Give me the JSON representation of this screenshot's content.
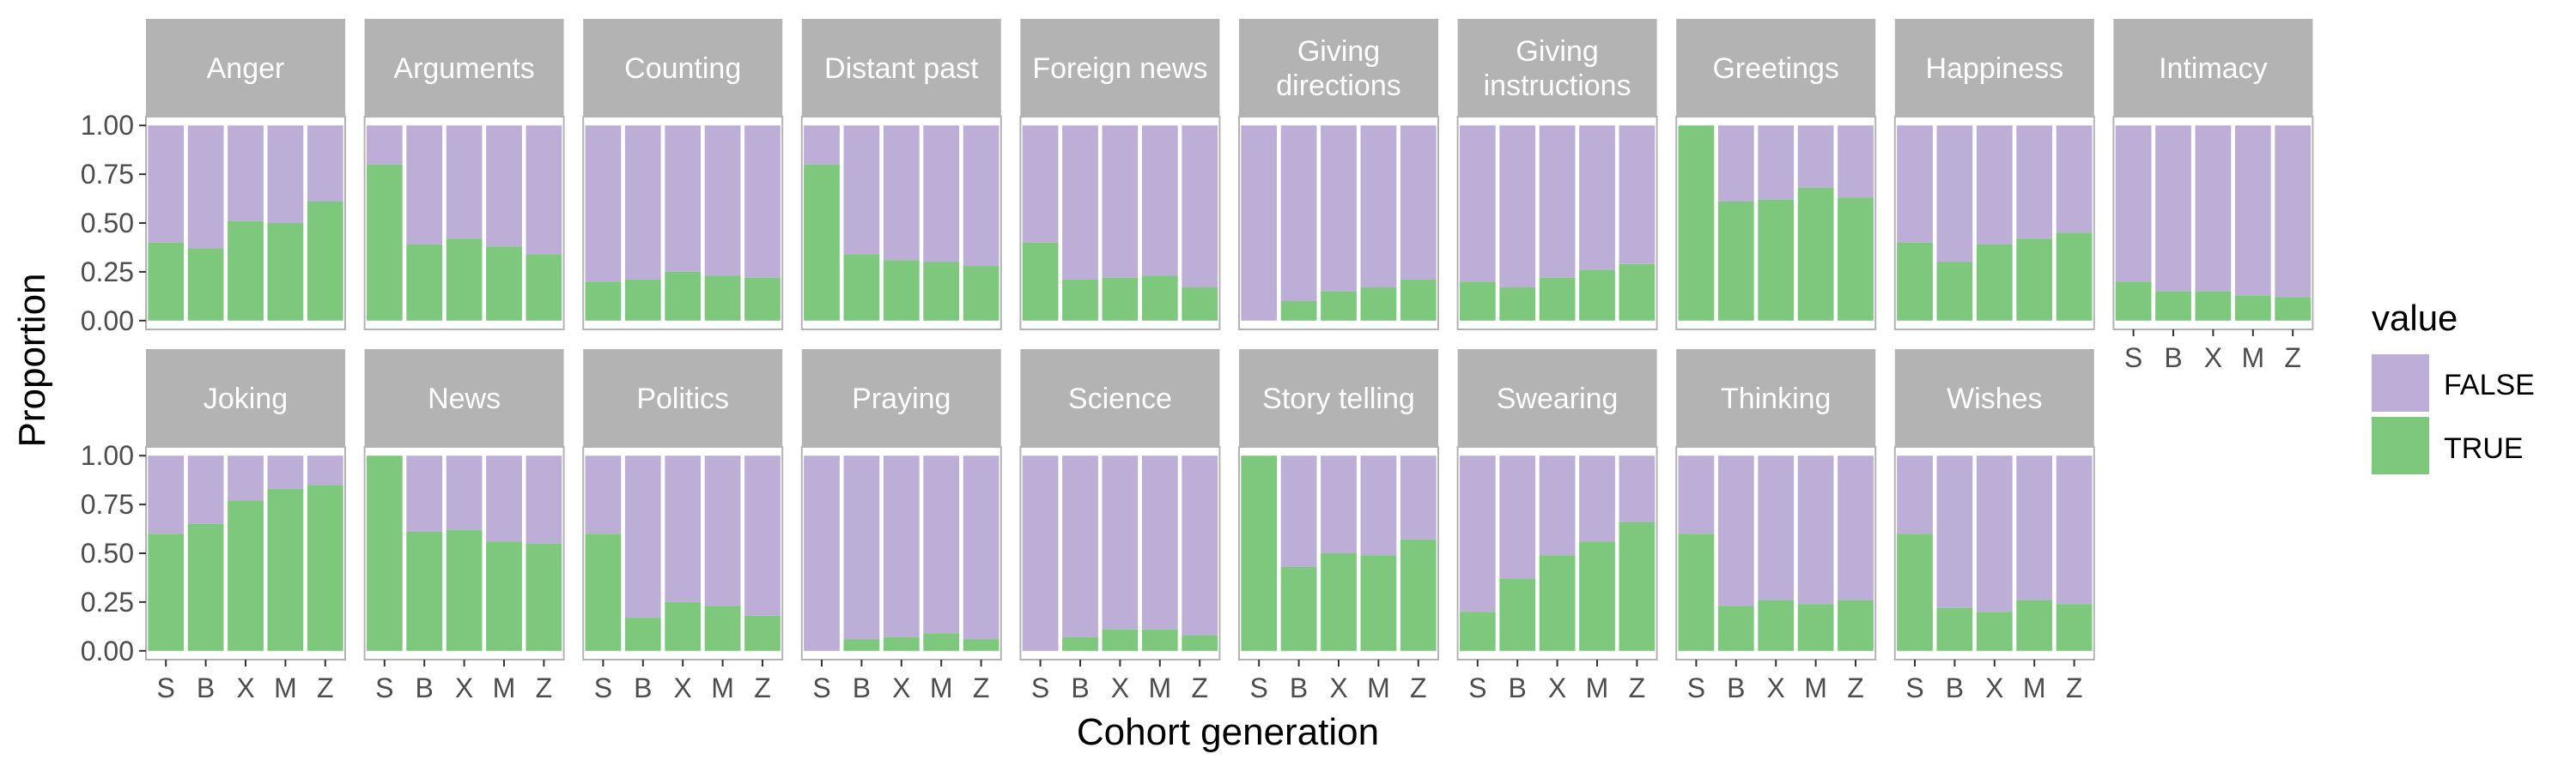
{
  "chart_data": {
    "type": "bar",
    "stacked": true,
    "xlabel": "Cohort generation",
    "ylabel": "Proportion",
    "ylim": [
      0,
      1
    ],
    "yticks": [
      "0.00",
      "0.25",
      "0.50",
      "0.75",
      "1.00"
    ],
    "categories": [
      "S",
      "B",
      "X",
      "M",
      "Z"
    ],
    "legend": {
      "title": "value",
      "position": "right",
      "items": [
        {
          "label": "FALSE",
          "color": "#bcaed6"
        },
        {
          "label": "TRUE",
          "color": "#7dc87d"
        }
      ]
    },
    "colors": {
      "FALSE": "#bcaed6",
      "TRUE": "#7dc87d",
      "strip": "#b3b3b3",
      "frame": "#b3b3b3"
    },
    "panels": [
      {
        "name": [
          "Anger"
        ],
        "true": [
          0.4,
          0.37,
          0.51,
          0.5,
          0.61
        ]
      },
      {
        "name": [
          "Arguments"
        ],
        "true": [
          0.8,
          0.39,
          0.42,
          0.38,
          0.34
        ]
      },
      {
        "name": [
          "Counting"
        ],
        "true": [
          0.2,
          0.21,
          0.25,
          0.23,
          0.22
        ]
      },
      {
        "name": [
          "Distant past"
        ],
        "true": [
          0.8,
          0.34,
          0.31,
          0.3,
          0.28
        ]
      },
      {
        "name": [
          "Foreign news"
        ],
        "true": [
          0.4,
          0.21,
          0.22,
          0.23,
          0.17
        ]
      },
      {
        "name": [
          "Giving",
          "directions"
        ],
        "true": [
          0.0,
          0.1,
          0.15,
          0.17,
          0.21
        ]
      },
      {
        "name": [
          "Giving",
          "instructions"
        ],
        "true": [
          0.2,
          0.17,
          0.22,
          0.26,
          0.29
        ]
      },
      {
        "name": [
          "Greetings"
        ],
        "true": [
          1.0,
          0.61,
          0.62,
          0.68,
          0.63
        ]
      },
      {
        "name": [
          "Happiness"
        ],
        "true": [
          0.4,
          0.3,
          0.39,
          0.42,
          0.45
        ]
      },
      {
        "name": [
          "Intimacy"
        ],
        "true": [
          0.2,
          0.15,
          0.15,
          0.13,
          0.12
        ]
      },
      {
        "name": [
          "Joking"
        ],
        "true": [
          0.6,
          0.65,
          0.77,
          0.83,
          0.85
        ]
      },
      {
        "name": [
          "News"
        ],
        "true": [
          1.0,
          0.61,
          0.62,
          0.56,
          0.55
        ]
      },
      {
        "name": [
          "Politics"
        ],
        "true": [
          0.6,
          0.17,
          0.25,
          0.23,
          0.18
        ]
      },
      {
        "name": [
          "Praying"
        ],
        "true": [
          0.0,
          0.06,
          0.07,
          0.09,
          0.06
        ]
      },
      {
        "name": [
          "Science"
        ],
        "true": [
          0.0,
          0.07,
          0.11,
          0.11,
          0.08
        ]
      },
      {
        "name": [
          "Story telling"
        ],
        "true": [
          1.0,
          0.43,
          0.5,
          0.49,
          0.57
        ]
      },
      {
        "name": [
          "Swearing"
        ],
        "true": [
          0.2,
          0.37,
          0.49,
          0.56,
          0.66
        ]
      },
      {
        "name": [
          "Thinking"
        ],
        "true": [
          0.6,
          0.23,
          0.26,
          0.24,
          0.26
        ]
      },
      {
        "name": [
          "Wishes"
        ],
        "true": [
          0.6,
          0.22,
          0.2,
          0.26,
          0.24
        ]
      }
    ]
  }
}
